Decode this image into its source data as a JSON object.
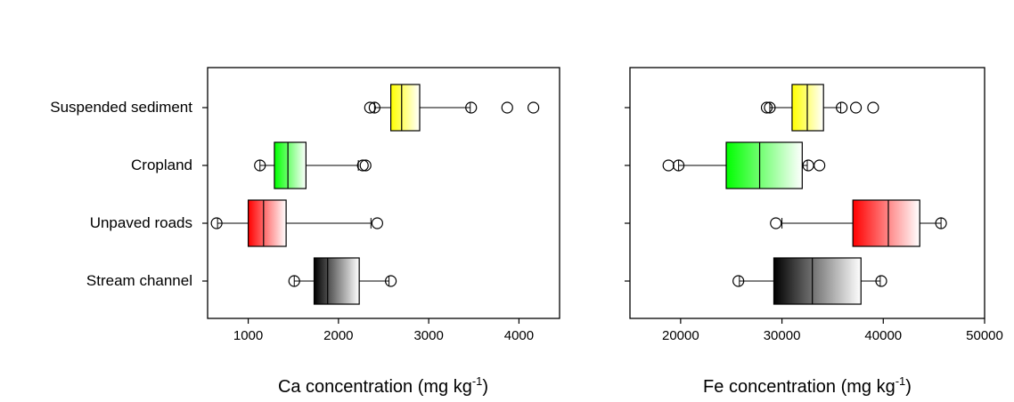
{
  "chart_data": [
    {
      "type": "boxplot",
      "orientation": "horizontal",
      "xlabel": "Ca concentration (mg kg",
      "xlabel_sup": "-1",
      "xlabel_suffix": ")",
      "xlim": [
        550,
        4450
      ],
      "xticks": [
        1000,
        2000,
        3000,
        4000
      ],
      "xtick_labels": [
        "1000",
        "2000",
        "3000",
        "4000"
      ],
      "categories": [
        "Suspended sediment",
        "Cropland",
        "Unpaved roads",
        "Stream channel"
      ],
      "boxes": [
        {
          "name": "Suspended sediment",
          "color": "#ffff00",
          "whisker_low": 2400,
          "q1": 2580,
          "median": 2700,
          "q3": 2900,
          "whisker_high": 3460,
          "outliers": [
            2350,
            2400,
            3470,
            3870,
            4160
          ]
        },
        {
          "name": "Cropland",
          "color": "#00ff00",
          "whisker_low": 1130,
          "q1": 1290,
          "median": 1440,
          "q3": 1640,
          "whisker_high": 2220,
          "outliers": [
            1130,
            2270,
            2300
          ]
        },
        {
          "name": "Unpaved roads",
          "color": "#ff0000",
          "whisker_low": 660,
          "q1": 1000,
          "median": 1170,
          "q3": 1420,
          "whisker_high": 2360,
          "outliers": [
            650,
            2430
          ]
        },
        {
          "name": "Stream channel",
          "color": "#000000",
          "whisker_low": 1510,
          "q1": 1730,
          "median": 1880,
          "q3": 2230,
          "whisker_high": 2560,
          "outliers": [
            1510,
            2580
          ]
        }
      ]
    },
    {
      "type": "boxplot",
      "orientation": "horizontal",
      "xlabel": "Fe concentration (mg kg",
      "xlabel_sup": "-1",
      "xlabel_suffix": ")",
      "xlim": [
        15000,
        50000
      ],
      "xticks": [
        20000,
        30000,
        40000,
        50000
      ],
      "xtick_labels": [
        "20000",
        "30000",
        "40000",
        "50000"
      ],
      "categories": [
        "Suspended sediment",
        "Cropland",
        "Unpaved roads",
        "Stream channel"
      ],
      "boxes": [
        {
          "name": "Suspended sediment",
          "color": "#ffff00",
          "whisker_low": 28800,
          "q1": 31000,
          "median": 32500,
          "q3": 34100,
          "whisker_high": 35800,
          "outliers": [
            28500,
            28800,
            35900,
            37300,
            39000
          ]
        },
        {
          "name": "Cropland",
          "color": "#00ff00",
          "whisker_low": 19800,
          "q1": 24500,
          "median": 27800,
          "q3": 32000,
          "whisker_high": 32500,
          "outliers": [
            18800,
            19800,
            32600,
            33700
          ]
        },
        {
          "name": "Unpaved roads",
          "color": "#ff0000",
          "whisker_low": 30000,
          "q1": 37000,
          "median": 40500,
          "q3": 43600,
          "whisker_high": 45700,
          "outliers": [
            29400,
            45700
          ]
        },
        {
          "name": "Stream channel",
          "color": "#000000",
          "whisker_low": 25800,
          "q1": 29200,
          "median": 33000,
          "q3": 37800,
          "whisker_high": 39700,
          "outliers": [
            25700,
            39800
          ]
        }
      ]
    }
  ]
}
